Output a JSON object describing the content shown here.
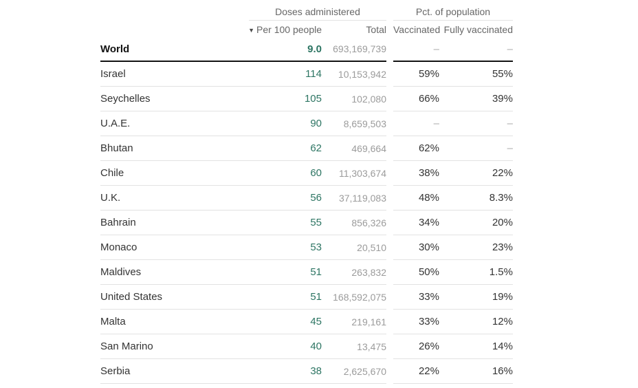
{
  "chart_data": {
    "type": "table",
    "column_groups": [
      "Doses administered",
      "Pct. of population"
    ],
    "columns": [
      "Per 100 people",
      "Total",
      "Vaccinated",
      "Fully vaccinated"
    ],
    "sort": {
      "column": "Per 100 people",
      "direction": "desc",
      "indicator": "▼"
    },
    "rows": [
      {
        "country": "World",
        "per_100": "9.0",
        "total": "693,169,739",
        "vaccinated": "–",
        "fully_vaccinated": "–",
        "emphasis": true
      },
      {
        "country": "Israel",
        "per_100": "114",
        "total": "10,153,942",
        "vaccinated": "59%",
        "fully_vaccinated": "55%"
      },
      {
        "country": "Seychelles",
        "per_100": "105",
        "total": "102,080",
        "vaccinated": "66%",
        "fully_vaccinated": "39%"
      },
      {
        "country": "U.A.E.",
        "per_100": "90",
        "total": "8,659,503",
        "vaccinated": "–",
        "fully_vaccinated": "–"
      },
      {
        "country": "Bhutan",
        "per_100": "62",
        "total": "469,664",
        "vaccinated": "62%",
        "fully_vaccinated": "–"
      },
      {
        "country": "Chile",
        "per_100": "60",
        "total": "11,303,674",
        "vaccinated": "38%",
        "fully_vaccinated": "22%"
      },
      {
        "country": "U.K.",
        "per_100": "56",
        "total": "37,119,083",
        "vaccinated": "48%",
        "fully_vaccinated": "8.3%"
      },
      {
        "country": "Bahrain",
        "per_100": "55",
        "total": "856,326",
        "vaccinated": "34%",
        "fully_vaccinated": "20%"
      },
      {
        "country": "Monaco",
        "per_100": "53",
        "total": "20,510",
        "vaccinated": "30%",
        "fully_vaccinated": "23%"
      },
      {
        "country": "Maldives",
        "per_100": "51",
        "total": "263,832",
        "vaccinated": "50%",
        "fully_vaccinated": "1.5%"
      },
      {
        "country": "United States",
        "per_100": "51",
        "total": "168,592,075",
        "vaccinated": "33%",
        "fully_vaccinated": "19%"
      },
      {
        "country": "Malta",
        "per_100": "45",
        "total": "219,161",
        "vaccinated": "33%",
        "fully_vaccinated": "12%"
      },
      {
        "country": "San Marino",
        "per_100": "40",
        "total": "13,475",
        "vaccinated": "26%",
        "fully_vaccinated": "14%"
      },
      {
        "country": "Serbia",
        "per_100": "38",
        "total": "2,625,670",
        "vaccinated": "22%",
        "fully_vaccinated": "16%"
      }
    ]
  },
  "colors": {
    "accent_green": "#2d7563",
    "text_dark": "#333333",
    "emphasis_dark": "#121212",
    "value_gray": "#9b9b9b",
    "header_gray": "#666666",
    "separator": "#e2e2e2",
    "dash_gray": "#aaaaaa",
    "background": "#ffffff"
  }
}
